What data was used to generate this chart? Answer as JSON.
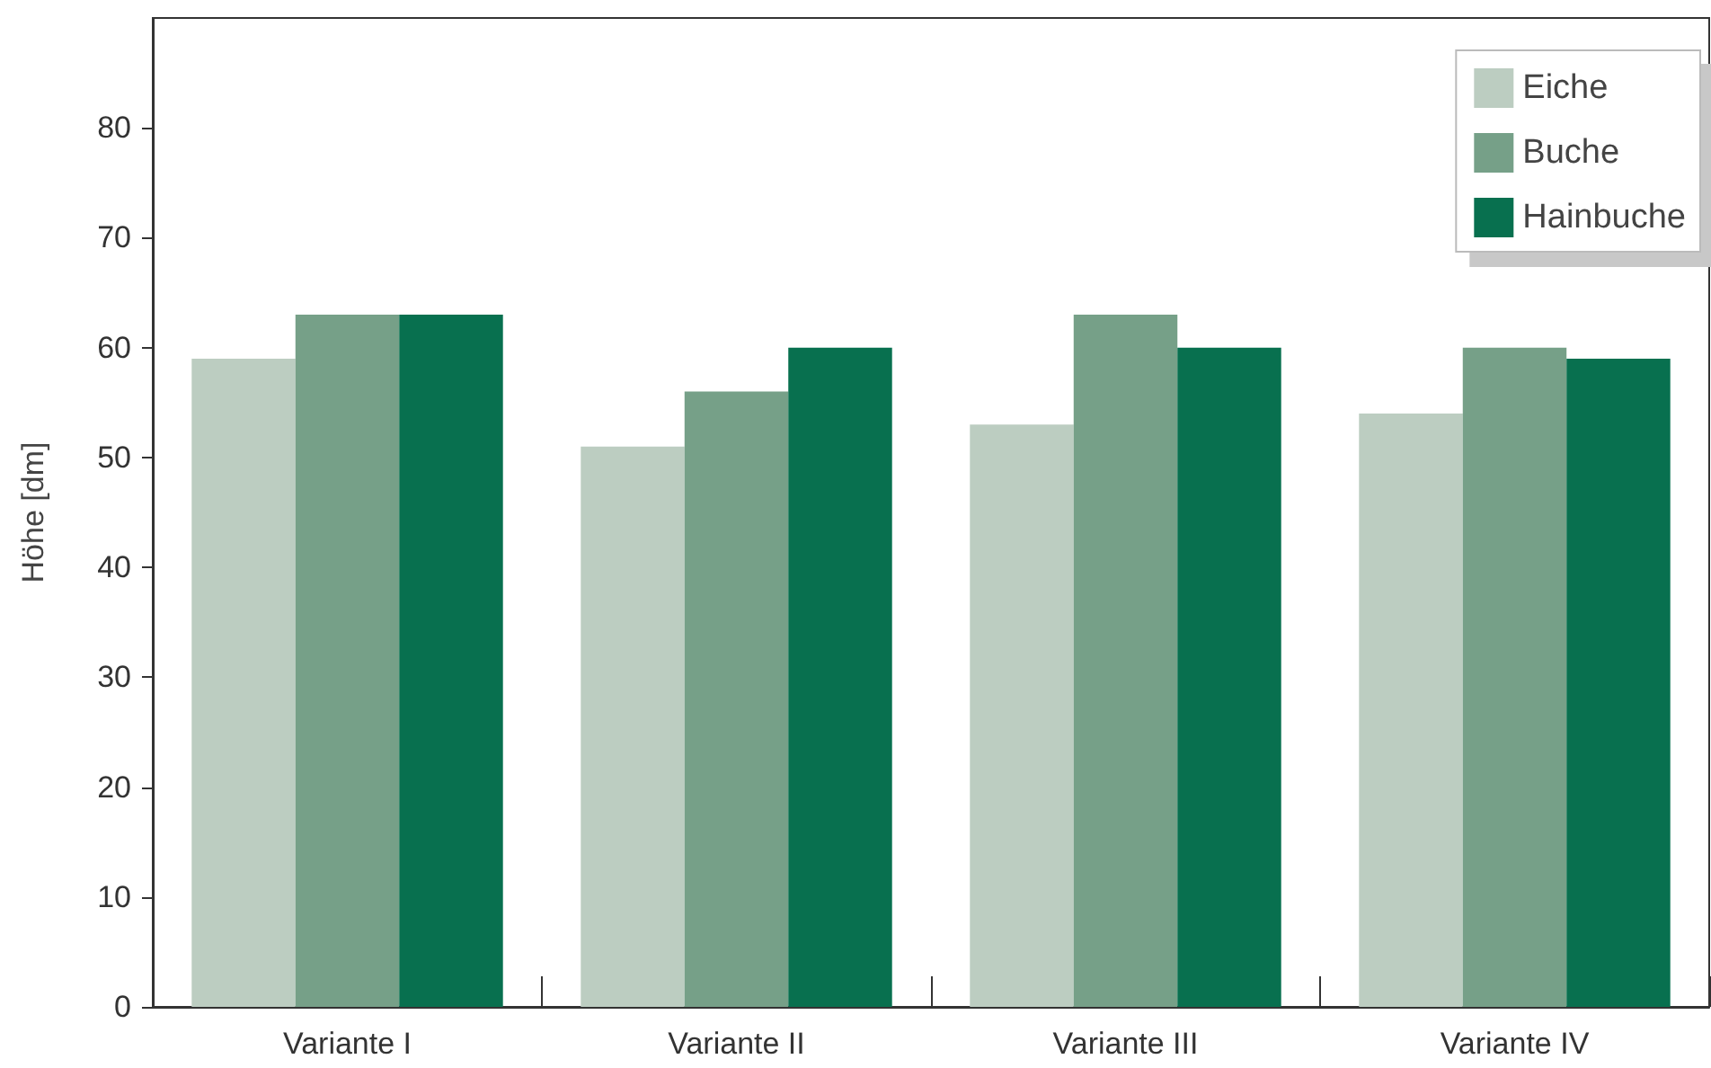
{
  "chart_data": {
    "type": "bar",
    "ylabel": "Höhe [dm]",
    "categories": [
      "Variante I",
      "Variante II",
      "Variante III",
      "Variante IV"
    ],
    "series": [
      {
        "name": "Eiche",
        "color": "#bccdc1",
        "values": [
          59,
          51,
          53,
          54
        ]
      },
      {
        "name": "Buche",
        "color": "#76a088",
        "values": [
          63,
          56,
          63,
          60
        ]
      },
      {
        "name": "Hainbuche",
        "color": "#08704f",
        "values": [
          63,
          60,
          60,
          59
        ]
      }
    ],
    "ylim": [
      0,
      90
    ],
    "yticks": [
      0,
      10,
      20,
      30,
      40,
      50,
      60,
      70,
      80
    ],
    "grid": false,
    "legend": "top right"
  }
}
